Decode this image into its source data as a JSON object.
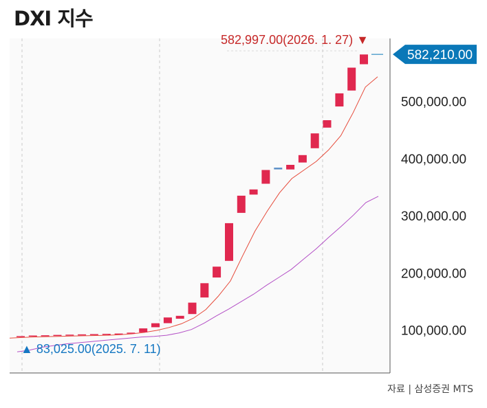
{
  "chart_data": {
    "type": "candlestick",
    "title": "DXI 지수",
    "source": "자료 | 삼성증권 MTS",
    "ylim": [
      25000,
      610000
    ],
    "y_ticks": [
      {
        "value": 100000,
        "label": "100,000.00"
      },
      {
        "value": 200000,
        "label": "200,000.00"
      },
      {
        "value": 300000,
        "label": "300,000.00"
      },
      {
        "value": 400000,
        "label": "400,000.00"
      },
      {
        "value": 500000,
        "label": "500,000.00"
      }
    ],
    "candles": [
      {
        "open": 89000,
        "close": 89500
      },
      {
        "open": 90000,
        "close": 90500
      },
      {
        "open": 90500,
        "close": 91000
      },
      {
        "open": 91000,
        "close": 91500
      },
      {
        "open": 91500,
        "close": 92000
      },
      {
        "open": 92000,
        "close": 92500
      },
      {
        "open": 92500,
        "close": 93000
      },
      {
        "open": 93000,
        "close": 93500
      },
      {
        "open": 93500,
        "close": 94000
      },
      {
        "open": 94500,
        "close": 95500
      },
      {
        "open": 96000,
        "close": 103000
      },
      {
        "open": 105000,
        "close": 112000
      },
      {
        "open": 112000,
        "close": 122000
      },
      {
        "open": 120000,
        "close": 125000
      },
      {
        "open": 128000,
        "close": 148000
      },
      {
        "open": 157000,
        "close": 182000
      },
      {
        "open": 192000,
        "close": 211000
      },
      {
        "open": 221000,
        "close": 287000
      },
      {
        "open": 305000,
        "close": 335000
      },
      {
        "open": 337000,
        "close": 346000
      },
      {
        "open": 356000,
        "close": 380000
      },
      {
        "open": 381000,
        "close": 384000
      },
      {
        "open": 381000,
        "close": 389000
      },
      {
        "open": 393000,
        "close": 406000
      },
      {
        "open": 418000,
        "close": 444000
      },
      {
        "open": 454000,
        "close": 467000
      },
      {
        "open": 491000,
        "close": 514000
      },
      {
        "open": 519000,
        "close": 559000
      },
      {
        "open": 565000,
        "close": 582000
      }
    ],
    "ma_short": [
      86,
      87,
      88,
      88.5,
      89,
      89.5,
      90,
      90.5,
      91,
      92,
      93.5,
      96,
      99.5,
      104.5,
      111,
      121,
      136,
      159,
      186,
      230,
      273,
      308,
      340,
      365,
      380,
      395,
      415,
      440,
      480,
      525,
      543
    ],
    "ma_long": [
      62,
      65,
      70,
      73,
      76,
      78,
      80,
      82,
      84,
      86,
      88,
      89,
      91,
      95,
      101,
      112,
      125,
      137,
      150,
      163,
      178,
      192,
      206,
      224,
      242,
      262,
      281,
      301,
      323,
      334
    ],
    "current": {
      "value": 582210,
      "label": "582,210.00"
    },
    "high_annotation": {
      "value": 582997,
      "label": "582,997.00(2026. 1. 27) ▼"
    },
    "low_annotation": {
      "value": 83025,
      "label": "▲ 83,025.00(2025. 7. 11)"
    },
    "colors": {
      "up": "#e0284f",
      "ma_short": "#e64a3a",
      "ma_long": "#b34fc6",
      "accent": "#0a78b8",
      "high": "#c62828",
      "low": "#1477c2"
    }
  }
}
